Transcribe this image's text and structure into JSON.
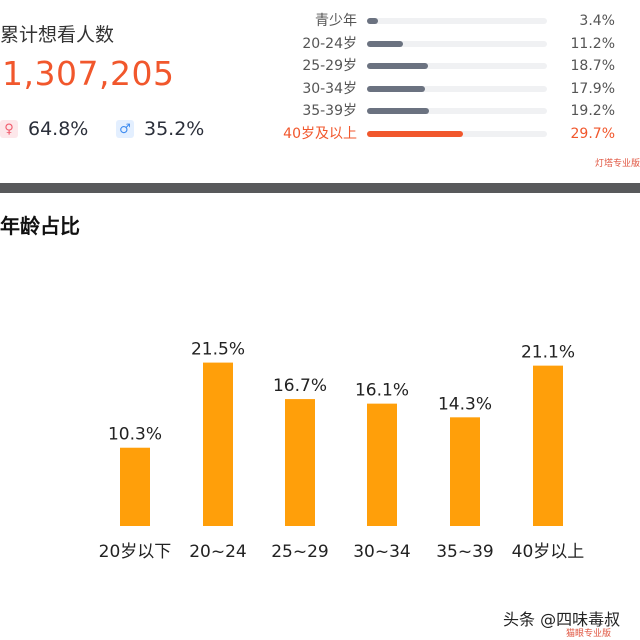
{
  "summary": {
    "title": "累计想看人数",
    "count": "1,307,205",
    "female": {
      "icon": "female-icon",
      "pct": "64.8%"
    },
    "male": {
      "icon": "male-icon",
      "pct": "35.2%"
    }
  },
  "age_distribution": [
    {
      "label": "青少年",
      "pct_text": "3.4%",
      "value": 3.4,
      "highlight": false
    },
    {
      "label": "20-24岁",
      "pct_text": "11.2%",
      "value": 11.2,
      "highlight": false
    },
    {
      "label": "25-29岁",
      "pct_text": "18.7%",
      "value": 18.7,
      "highlight": false
    },
    {
      "label": "30-34岁",
      "pct_text": "17.9%",
      "value": 17.9,
      "highlight": false
    },
    {
      "label": "35-39岁",
      "pct_text": "19.2%",
      "value": 19.2,
      "highlight": false
    },
    {
      "label": "40岁及以上",
      "pct_text": "29.7%",
      "value": 29.7,
      "highlight": true
    }
  ],
  "watermark_top": "灯塔专业版",
  "section_title": "年龄占比",
  "chart_data": {
    "type": "bar",
    "title": "年龄占比",
    "categories": [
      "20岁以下",
      "20~24",
      "25~29",
      "30~34",
      "35~39",
      "40岁以上"
    ],
    "values": [
      10.3,
      21.5,
      16.7,
      16.1,
      14.3,
      21.1
    ],
    "value_labels": [
      "10.3%",
      "21.5%",
      "16.7%",
      "16.1%",
      "14.3%",
      "21.1%"
    ],
    "ylim": [
      0,
      25
    ],
    "grid": false,
    "color": "#ff9f0a"
  },
  "footer": {
    "brand": "头条 @四味毒叔",
    "sub": "猫眼专业版"
  },
  "colors": {
    "accent": "#f1572c",
    "bar_gray": "#6b7280",
    "bar_orange": "#ff9f0a"
  }
}
